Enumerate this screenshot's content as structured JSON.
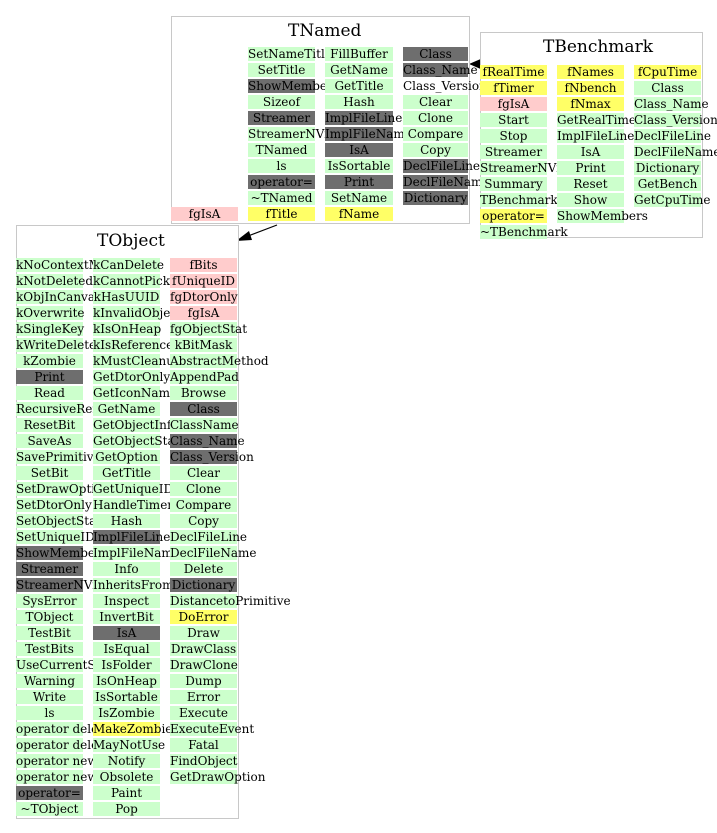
{
  "colors": {
    "member_green": "#ccffcc",
    "member_dark": "#6e6e6e",
    "member_pink": "#ffcccc",
    "member_yellow": "#ffff66",
    "arrow": "#000000"
  },
  "classes": {
    "tnamed": {
      "title": "TNamed",
      "col1": [
        "SetNameTitle",
        "SetTitle",
        "ShowMembers",
        "Sizeof",
        "Streamer",
        "StreamerNVirtual",
        "TNamed",
        "ls",
        "operator=",
        "~TNamed",
        "fTitle"
      ],
      "col2": [
        "FillBuffer",
        "GetName",
        "GetTitle",
        "Hash",
        "ImplFileLine",
        "ImplFileName",
        "IsA",
        "IsSortable",
        "Print",
        "SetName",
        "fName"
      ],
      "col3": [
        "Class",
        "Class_Name",
        "Class_Version",
        "Clear",
        "Clone",
        "Compare",
        "Copy",
        "DeclFileLine",
        "DeclFileName",
        "Dictionary"
      ],
      "outside": "fgIsA"
    },
    "tbenchmark": {
      "title": "TBenchmark",
      "col1": [
        "fRealTime",
        "fTimer",
        "fgIsA",
        "Start",
        "Stop",
        "Streamer",
        "StreamerNVirtual",
        "Summary",
        "TBenchmark",
        "operator=",
        "~TBenchmark"
      ],
      "col2": [
        "fNames",
        "fNbench",
        "fNmax",
        "GetRealTime",
        "ImplFileLine",
        "IsA",
        "Print",
        "Reset",
        "Show",
        "ShowMembers"
      ],
      "col3": [
        "fCpuTime",
        "Class",
        "Class_Name",
        "Class_Version",
        "DeclFileLine",
        "DeclFileName",
        "Dictionary",
        "GetBench",
        "GetCpuTime"
      ]
    },
    "tobject": {
      "title": "TObject",
      "col1": [
        "kNoContextMenu",
        "kNotDeleted",
        "kObjInCanvas",
        "kOverwrite",
        "kSingleKey",
        "kWriteDelete",
        "kZombie",
        "Print",
        "Read",
        "RecursiveRemove",
        "ResetBit",
        "SaveAs",
        "SavePrimitive",
        "SetBit",
        "SetDrawOption",
        "SetDtorOnly",
        "SetObjectStat",
        "SetUniqueID",
        "ShowMembers",
        "Streamer",
        "StreamerNVirtual",
        "SysError",
        "TObject",
        "TestBit",
        "TestBits",
        "UseCurrentStyle",
        "Warning",
        "Write",
        "ls",
        "operator delete",
        "operator delete[]",
        "operator new",
        "operator new[]",
        "operator=",
        "~TObject"
      ],
      "col2": [
        "kCanDelete",
        "kCannotPick",
        "kHasUUID",
        "kInvalidObject",
        "kIsOnHeap",
        "kIsReferenced",
        "kMustCleanup",
        "GetDtorOnly",
        "GetIconName",
        "GetName",
        "GetObjectInfo",
        "GetObjectStat",
        "GetOption",
        "GetTitle",
        "GetUniqueID",
        "HandleTimer",
        "Hash",
        "ImplFileLine",
        "ImplFileName",
        "Info",
        "InheritsFrom",
        "Inspect",
        "InvertBit",
        "IsA",
        "IsEqual",
        "IsFolder",
        "IsOnHeap",
        "IsSortable",
        "IsZombie",
        "MakeZombie",
        "MayNotUse",
        "Notify",
        "Obsolete",
        "Paint",
        "Pop"
      ],
      "col3": [
        "fBits",
        "fUniqueID",
        "fgDtorOnly",
        "fgIsA",
        "fgObjectStat",
        "kBitMask",
        "AbstractMethod",
        "AppendPad",
        "Browse",
        "Class",
        "ClassName",
        "Class_Name",
        "Class_Version",
        "Clear",
        "Clone",
        "Compare",
        "Copy",
        "DeclFileLine",
        "DeclFileName",
        "Delete",
        "Dictionary",
        "DistancetoPrimitive",
        "DoError",
        "Draw",
        "DrawClass",
        "DrawClone",
        "Dump",
        "Error",
        "Execute",
        "ExecuteEvent",
        "Fatal",
        "FindObject",
        "GetDrawOption"
      ]
    }
  }
}
